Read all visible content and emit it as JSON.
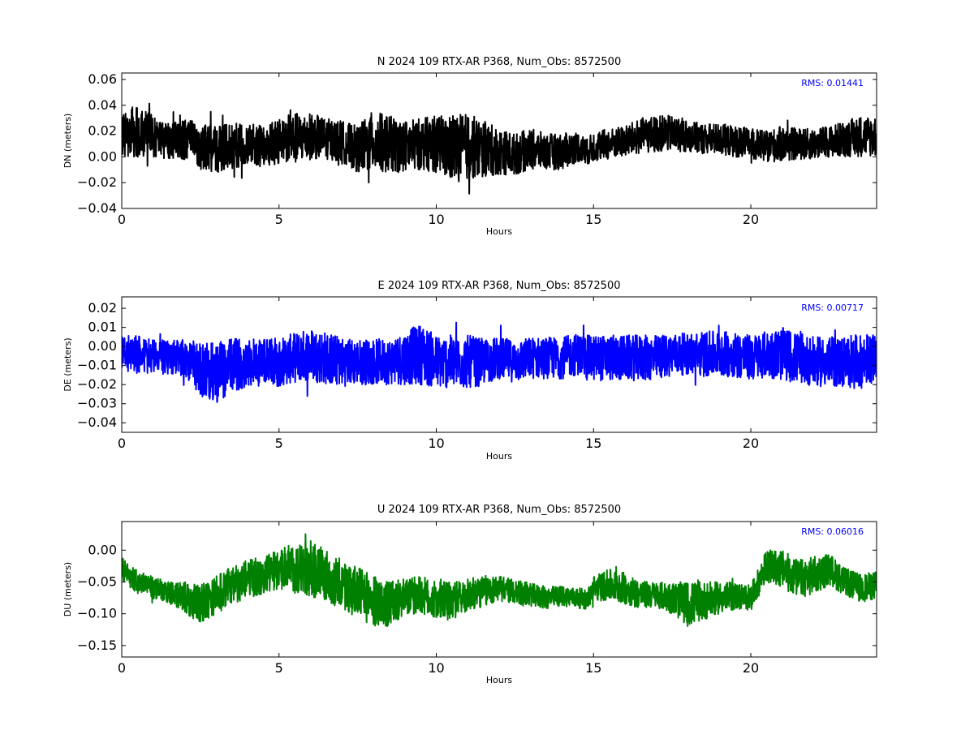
{
  "chart_data": [
    {
      "type": "line",
      "title": "N 2024 109 RTX-AR  P368, Num_Obs: 8572500",
      "xlabel": "Hours",
      "ylabel": "DN (meters)",
      "xlim": [
        0,
        24
      ],
      "ylim": [
        -0.04,
        0.065
      ],
      "xticks": [
        0,
        5,
        10,
        15,
        20
      ],
      "yticks": [
        -0.04,
        -0.02,
        0.0,
        0.02,
        0.04,
        0.06
      ],
      "ytick_labels": [
        "−0.04",
        "−0.02",
        "0.00",
        "0.02",
        "0.04",
        "0.06"
      ],
      "color": "#000000",
      "annotation": "RMS:  0.01441",
      "annotation_color": "#0000ff",
      "grid": false,
      "series": [
        {
          "x": [
            0,
            0.5,
            1,
            1.5,
            2,
            2.5,
            3,
            3.5,
            4,
            4.5,
            5,
            5.5,
            6,
            6.5,
            7,
            7.5,
            8,
            8.5,
            9,
            9.5,
            10,
            10.5,
            11,
            11.5,
            12,
            12.5,
            13,
            13.5,
            14,
            14.5,
            14.8,
            15,
            15.5,
            16,
            16.5,
            17,
            17.5,
            18,
            18.5,
            19,
            19.5,
            20,
            20.5,
            21,
            21.5,
            22,
            22.5,
            23,
            23.5,
            24
          ],
          "center": [
            0.018,
            0.02,
            0.016,
            0.012,
            0.014,
            0.008,
            0.006,
            0.008,
            0.01,
            0.008,
            0.012,
            0.014,
            0.016,
            0.014,
            0.012,
            0.006,
            0.012,
            0.01,
            0.008,
            0.01,
            0.01,
            0.006,
            0.008,
            0.006,
            0.004,
            0.002,
            0.006,
            0.004,
            0.004,
            0.008,
            0.004,
            0.008,
            0.01,
            0.012,
            0.016,
            0.018,
            0.018,
            0.016,
            0.014,
            0.014,
            0.012,
            0.01,
            0.008,
            0.01,
            0.01,
            0.01,
            0.012,
            0.014,
            0.016,
            0.016
          ],
          "amplitude": [
            0.018,
            0.02,
            0.016,
            0.014,
            0.016,
            0.018,
            0.018,
            0.018,
            0.016,
            0.016,
            0.018,
            0.02,
            0.018,
            0.016,
            0.016,
            0.018,
            0.024,
            0.022,
            0.02,
            0.02,
            0.022,
            0.026,
            0.026,
            0.022,
            0.018,
            0.016,
            0.016,
            0.014,
            0.014,
            0.012,
            0.01,
            0.012,
            0.012,
            0.012,
            0.014,
            0.014,
            0.014,
            0.012,
            0.012,
            0.012,
            0.012,
            0.012,
            0.012,
            0.014,
            0.012,
            0.012,
            0.012,
            0.014,
            0.016,
            0.016
          ]
        }
      ]
    },
    {
      "type": "line",
      "title": "E 2024 109 RTX-AR  P368, Num_Obs: 8572500",
      "xlabel": "Hours",
      "ylabel": "DE (meters)",
      "xlim": [
        0,
        24
      ],
      "ylim": [
        -0.045,
        0.026
      ],
      "xticks": [
        0,
        5,
        10,
        15,
        20
      ],
      "yticks": [
        -0.04,
        -0.03,
        -0.02,
        -0.01,
        0.0,
        0.01,
        0.02
      ],
      "ytick_labels": [
        "−0.04",
        "−0.03",
        "−0.02",
        "−0.01",
        "0.00",
        "0.01",
        "0.02"
      ],
      "color": "#0000ff",
      "annotation": "RMS:  0.00717",
      "annotation_color": "#0000ff",
      "grid": false,
      "series": [
        {
          "x": [
            0,
            0.5,
            1,
            1.5,
            2,
            2.5,
            3,
            3.5,
            4,
            4.5,
            5,
            5.5,
            6,
            6.5,
            7,
            7.5,
            8,
            8.5,
            9,
            9.5,
            10,
            10.5,
            11,
            11.5,
            12,
            12.5,
            13,
            13.5,
            14,
            14.5,
            14.8,
            15,
            15.5,
            16,
            16.5,
            17,
            17.5,
            18,
            18.5,
            19,
            19.5,
            20,
            20.5,
            21,
            21.5,
            22,
            22.5,
            23,
            23.5,
            24
          ],
          "center": [
            -0.004,
            -0.004,
            -0.005,
            -0.006,
            -0.006,
            -0.012,
            -0.014,
            -0.01,
            -0.008,
            -0.008,
            -0.008,
            -0.006,
            -0.004,
            -0.006,
            -0.008,
            -0.008,
            -0.008,
            -0.008,
            -0.006,
            -0.004,
            -0.008,
            -0.008,
            -0.008,
            -0.008,
            -0.006,
            -0.008,
            -0.006,
            -0.006,
            -0.006,
            -0.004,
            -0.006,
            -0.006,
            -0.006,
            -0.006,
            -0.006,
            -0.006,
            -0.004,
            -0.004,
            -0.004,
            -0.004,
            -0.004,
            -0.006,
            -0.004,
            -0.004,
            -0.006,
            -0.008,
            -0.008,
            -0.008,
            -0.008,
            -0.006
          ],
          "amplitude": [
            0.01,
            0.01,
            0.009,
            0.009,
            0.01,
            0.014,
            0.016,
            0.014,
            0.013,
            0.013,
            0.013,
            0.013,
            0.014,
            0.014,
            0.013,
            0.012,
            0.012,
            0.012,
            0.014,
            0.016,
            0.014,
            0.014,
            0.014,
            0.012,
            0.011,
            0.011,
            0.011,
            0.011,
            0.011,
            0.011,
            0.012,
            0.012,
            0.012,
            0.012,
            0.012,
            0.012,
            0.011,
            0.011,
            0.012,
            0.012,
            0.012,
            0.012,
            0.012,
            0.014,
            0.013,
            0.013,
            0.013,
            0.014,
            0.014,
            0.012
          ]
        }
      ]
    },
    {
      "type": "line",
      "title": "U 2024 109 RTX-AR  P368, Num_Obs: 8572500",
      "xlabel": "Hours",
      "ylabel": "DU (meters)",
      "xlim": [
        0,
        24
      ],
      "ylim": [
        -0.168,
        0.045
      ],
      "xticks": [
        0,
        5,
        10,
        15,
        20
      ],
      "yticks": [
        -0.15,
        -0.1,
        -0.05,
        0.0
      ],
      "ytick_labels": [
        "−0.15",
        "−0.10",
        "−0.05",
        "0.00"
      ],
      "color": "#008000",
      "annotation": "RMS:  0.06016",
      "annotation_color": "#0000ff",
      "grid": false,
      "series": [
        {
          "x": [
            0,
            0.5,
            1,
            1.5,
            2,
            2.5,
            3,
            3.5,
            4,
            4.5,
            5,
            5.5,
            6,
            6.5,
            7,
            7.5,
            8,
            8.5,
            9,
            9.5,
            10,
            10.5,
            11,
            11.5,
            12,
            12.5,
            13,
            13.5,
            14,
            14.5,
            14.8,
            15,
            15.5,
            16,
            16.5,
            17,
            17.5,
            18,
            18.5,
            19,
            19.5,
            20,
            20.5,
            21,
            21.5,
            22,
            22.5,
            23,
            23.5,
            24
          ],
          "center": [
            -0.03,
            -0.05,
            -0.06,
            -0.068,
            -0.075,
            -0.085,
            -0.07,
            -0.055,
            -0.045,
            -0.04,
            -0.03,
            -0.028,
            -0.03,
            -0.04,
            -0.055,
            -0.065,
            -0.08,
            -0.085,
            -0.075,
            -0.07,
            -0.08,
            -0.08,
            -0.07,
            -0.065,
            -0.06,
            -0.065,
            -0.07,
            -0.075,
            -0.072,
            -0.075,
            -0.078,
            -0.06,
            -0.055,
            -0.06,
            -0.07,
            -0.07,
            -0.075,
            -0.085,
            -0.08,
            -0.075,
            -0.072,
            -0.075,
            -0.025,
            -0.03,
            -0.045,
            -0.04,
            -0.03,
            -0.05,
            -0.06,
            -0.055
          ],
          "amplitude": [
            0.018,
            0.018,
            0.018,
            0.018,
            0.025,
            0.03,
            0.03,
            0.03,
            0.03,
            0.03,
            0.03,
            0.04,
            0.045,
            0.04,
            0.04,
            0.04,
            0.04,
            0.035,
            0.03,
            0.03,
            0.03,
            0.03,
            0.025,
            0.025,
            0.02,
            0.02,
            0.018,
            0.018,
            0.016,
            0.016,
            0.016,
            0.02,
            0.025,
            0.025,
            0.022,
            0.02,
            0.025,
            0.035,
            0.03,
            0.025,
            0.022,
            0.02,
            0.025,
            0.03,
            0.03,
            0.03,
            0.025,
            0.022,
            0.022,
            0.022
          ]
        }
      ]
    }
  ]
}
